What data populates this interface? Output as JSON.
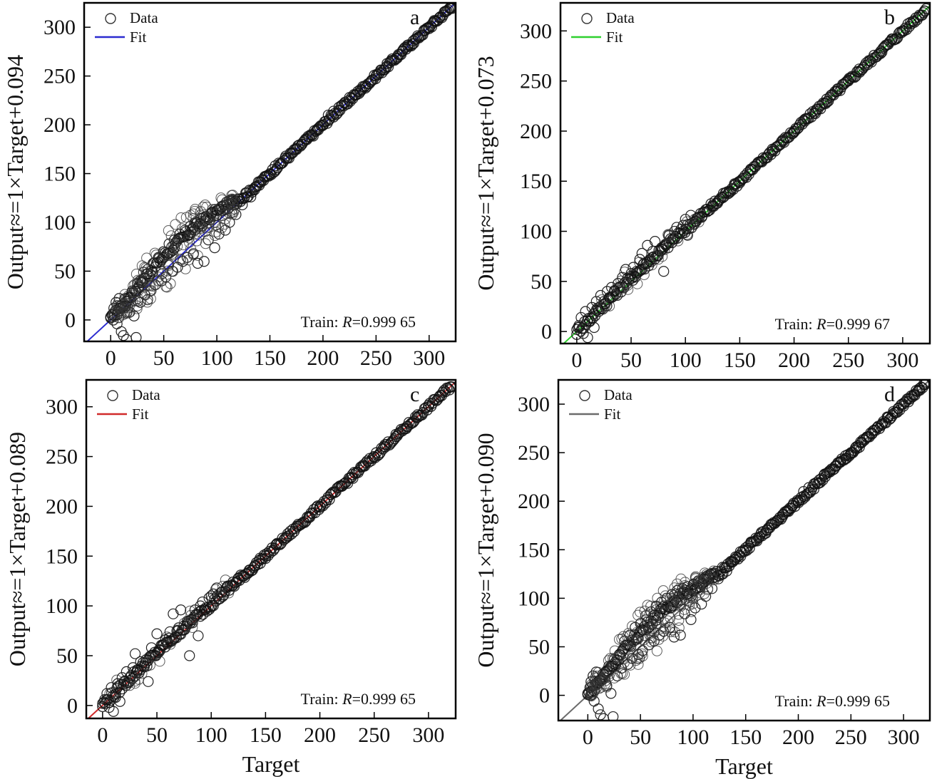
{
  "chart_data": [
    {
      "type": "scatter",
      "panel": "a",
      "legend": {
        "data_label": "Data",
        "fit_label": "Fit",
        "placement": "top-left"
      },
      "fit_color": "#2b2bd0",
      "fit": {
        "slope": 1,
        "intercept": 0.094
      },
      "ylabel": "Output≈=1×Target+0.094",
      "xlabel": "",
      "x_ticks": [
        "0",
        "50",
        "100",
        "150",
        "200",
        "250",
        "300"
      ],
      "y_ticks": [
        "0",
        "50",
        "100",
        "150",
        "200",
        "250",
        "300"
      ],
      "xlim": [
        -25,
        325
      ],
      "ylim": [
        -22,
        325
      ],
      "r_prefix": "Train: ",
      "r_symbol": "R",
      "r_value": "=0.999 65",
      "bulge": 1.0,
      "points": [
        [
          0,
          2
        ],
        [
          2,
          6
        ],
        [
          3,
          12
        ],
        [
          5,
          18
        ],
        [
          6,
          -4
        ],
        [
          8,
          22
        ],
        [
          10,
          -12
        ],
        [
          12,
          -16
        ],
        [
          14,
          14
        ],
        [
          15,
          -20
        ],
        [
          18,
          8
        ],
        [
          20,
          28
        ],
        [
          22,
          4
        ],
        [
          24,
          -18
        ],
        [
          26,
          32
        ],
        [
          28,
          18
        ],
        [
          30,
          40
        ],
        [
          32,
          26
        ],
        [
          35,
          52
        ],
        [
          38,
          30
        ],
        [
          40,
          58
        ],
        [
          42,
          36
        ],
        [
          45,
          64
        ],
        [
          48,
          40
        ],
        [
          50,
          70
        ],
        [
          52,
          44
        ],
        [
          55,
          78
        ],
        [
          58,
          50
        ],
        [
          60,
          82
        ],
        [
          63,
          54
        ],
        [
          65,
          88
        ],
        [
          68,
          60
        ],
        [
          70,
          92
        ],
        [
          72,
          64
        ],
        [
          75,
          96
        ],
        [
          78,
          68
        ],
        [
          80,
          100
        ],
        [
          82,
          58
        ],
        [
          85,
          104
        ],
        [
          88,
          60
        ],
        [
          90,
          106
        ],
        [
          92,
          82
        ],
        [
          95,
          110
        ],
        [
          98,
          74
        ],
        [
          100,
          112
        ],
        [
          102,
          88
        ],
        [
          105,
          116
        ],
        [
          108,
          92
        ],
        [
          110,
          118
        ],
        [
          112,
          100
        ],
        [
          115,
          120
        ],
        [
          118,
          108
        ],
        [
          120,
          124
        ],
        [
          124,
          118
        ],
        [
          128,
          130
        ],
        [
          132,
          126
        ],
        [
          136,
          136
        ],
        [
          140,
          138
        ],
        [
          145,
          146
        ],
        [
          150,
          150
        ],
        [
          155,
          158
        ],
        [
          160,
          160
        ],
        [
          165,
          168
        ],
        [
          170,
          170
        ],
        [
          175,
          176
        ],
        [
          180,
          180
        ],
        [
          185,
          186
        ],
        [
          190,
          190
        ],
        [
          195,
          196
        ],
        [
          200,
          200
        ],
        [
          205,
          210
        ],
        [
          210,
          214
        ],
        [
          215,
          218
        ],
        [
          220,
          222
        ],
        [
          225,
          228
        ],
        [
          230,
          230
        ],
        [
          235,
          236
        ],
        [
          240,
          240
        ],
        [
          245,
          244
        ],
        [
          250,
          250
        ],
        [
          255,
          256
        ],
        [
          260,
          260
        ],
        [
          265,
          266
        ],
        [
          270,
          270
        ],
        [
          275,
          276
        ],
        [
          280,
          280
        ],
        [
          285,
          286
        ],
        [
          290,
          290
        ],
        [
          295,
          296
        ],
        [
          300,
          300
        ],
        [
          305,
          306
        ],
        [
          310,
          310
        ],
        [
          315,
          316
        ],
        [
          320,
          320
        ]
      ]
    },
    {
      "type": "scatter",
      "panel": "b",
      "legend": {
        "data_label": "Data",
        "fit_label": "Fit",
        "placement": "top-left"
      },
      "fit_color": "#2fd02f",
      "fit": {
        "slope": 1,
        "intercept": 0.073
      },
      "ylabel": "Output≈=1×Target+0.073",
      "xlabel": "",
      "x_ticks": [
        "0",
        "50",
        "100",
        "150",
        "200",
        "250",
        "300"
      ],
      "y_ticks": [
        "0",
        "50",
        "100",
        "150",
        "200",
        "250",
        "300"
      ],
      "xlim": [
        -15,
        325
      ],
      "ylim": [
        -12,
        328
      ],
      "r_prefix": "Train: ",
      "r_symbol": "R",
      "r_value": "=0.999 67",
      "bulge": 0.2,
      "points": [
        [
          0,
          2
        ],
        [
          2,
          6
        ],
        [
          4,
          14
        ],
        [
          6,
          -2
        ],
        [
          8,
          20
        ],
        [
          10,
          -6
        ],
        [
          12,
          10
        ],
        [
          14,
          24
        ],
        [
          16,
          4
        ],
        [
          18,
          30
        ],
        [
          20,
          22
        ],
        [
          22,
          36
        ],
        [
          25,
          30
        ],
        [
          28,
          40
        ],
        [
          30,
          34
        ],
        [
          32,
          44
        ],
        [
          35,
          40
        ],
        [
          38,
          48
        ],
        [
          40,
          44
        ],
        [
          42,
          54
        ],
        [
          45,
          62
        ],
        [
          48,
          52
        ],
        [
          50,
          58
        ],
        [
          52,
          64
        ],
        [
          55,
          60
        ],
        [
          58,
          72
        ],
        [
          60,
          78
        ],
        [
          62,
          68
        ],
        [
          65,
          86
        ],
        [
          68,
          72
        ],
        [
          70,
          80
        ],
        [
          72,
          90
        ],
        [
          75,
          76
        ],
        [
          78,
          82
        ],
        [
          80,
          60
        ],
        [
          82,
          86
        ],
        [
          85,
          96
        ],
        [
          88,
          92
        ],
        [
          90,
          100
        ],
        [
          92,
          104
        ],
        [
          95,
          98
        ],
        [
          98,
          106
        ],
        [
          100,
          112
        ],
        [
          102,
          96
        ],
        [
          105,
          116
        ],
        [
          110,
          110
        ],
        [
          115,
          114
        ],
        [
          120,
          122
        ],
        [
          125,
          126
        ],
        [
          130,
          130
        ],
        [
          135,
          138
        ],
        [
          140,
          140
        ],
        [
          145,
          146
        ],
        [
          150,
          150
        ],
        [
          160,
          162
        ],
        [
          170,
          170
        ],
        [
          180,
          182
        ],
        [
          190,
          190
        ],
        [
          200,
          200
        ],
        [
          210,
          212
        ],
        [
          220,
          220
        ],
        [
          230,
          232
        ],
        [
          240,
          240
        ],
        [
          250,
          250
        ],
        [
          260,
          262
        ],
        [
          270,
          270
        ],
        [
          280,
          280
        ],
        [
          290,
          292
        ],
        [
          300,
          300
        ],
        [
          310,
          310
        ],
        [
          320,
          320
        ]
      ]
    },
    {
      "type": "scatter",
      "panel": "c",
      "legend": {
        "data_label": "Data",
        "fit_label": "Fit",
        "placement": "top-left"
      },
      "fit_color": "#d02a2a",
      "fit": {
        "slope": 1,
        "intercept": 0.089
      },
      "ylabel": "Output≈=1×Target+0.089",
      "xlabel": "Target",
      "x_ticks": [
        "0",
        "50",
        "100",
        "150",
        "200",
        "250",
        "300"
      ],
      "y_ticks": [
        "0",
        "50",
        "100",
        "150",
        "200",
        "250",
        "300"
      ],
      "xlim": [
        -15,
        325
      ],
      "ylim": [
        -13,
        327
      ],
      "r_prefix": "Train: ",
      "r_symbol": "R",
      "r_value": "=0.999 65",
      "bulge": 0.2,
      "points": [
        [
          0,
          2
        ],
        [
          2,
          6
        ],
        [
          4,
          12
        ],
        [
          6,
          -2
        ],
        [
          8,
          18
        ],
        [
          10,
          -6
        ],
        [
          12,
          8
        ],
        [
          14,
          22
        ],
        [
          16,
          4
        ],
        [
          18,
          28
        ],
        [
          20,
          24
        ],
        [
          22,
          34
        ],
        [
          25,
          28
        ],
        [
          28,
          38
        ],
        [
          30,
          52
        ],
        [
          32,
          36
        ],
        [
          35,
          44
        ],
        [
          38,
          40
        ],
        [
          40,
          46
        ],
        [
          42,
          24
        ],
        [
          45,
          58
        ],
        [
          48,
          50
        ],
        [
          50,
          72
        ],
        [
          52,
          56
        ],
        [
          55,
          60
        ],
        [
          58,
          66
        ],
        [
          60,
          64
        ],
        [
          62,
          74
        ],
        [
          65,
          92
        ],
        [
          68,
          68
        ],
        [
          70,
          78
        ],
        [
          72,
          96
        ],
        [
          75,
          80
        ],
        [
          78,
          82
        ],
        [
          80,
          50
        ],
        [
          82,
          86
        ],
        [
          85,
          96
        ],
        [
          88,
          70
        ],
        [
          90,
          100
        ],
        [
          92,
          104
        ],
        [
          95,
          98
        ],
        [
          98,
          108
        ],
        [
          100,
          110
        ],
        [
          102,
          112
        ],
        [
          105,
          118
        ],
        [
          110,
          114
        ],
        [
          115,
          120
        ],
        [
          120,
          124
        ],
        [
          125,
          128
        ],
        [
          130,
          130
        ],
        [
          135,
          136
        ],
        [
          140,
          140
        ],
        [
          145,
          148
        ],
        [
          150,
          150
        ],
        [
          160,
          162
        ],
        [
          170,
          170
        ],
        [
          180,
          182
        ],
        [
          190,
          190
        ],
        [
          200,
          200
        ],
        [
          210,
          212
        ],
        [
          220,
          220
        ],
        [
          230,
          232
        ],
        [
          240,
          240
        ],
        [
          250,
          250
        ],
        [
          260,
          262
        ],
        [
          270,
          270
        ],
        [
          280,
          280
        ],
        [
          290,
          292
        ],
        [
          300,
          300
        ],
        [
          310,
          310
        ],
        [
          320,
          320
        ]
      ]
    },
    {
      "type": "scatter",
      "panel": "d",
      "legend": {
        "data_label": "Data",
        "fit_label": "Fit",
        "placement": "top-left"
      },
      "fit_color": "#6b6b6b",
      "fit": {
        "slope": 1,
        "intercept": 0.09
      },
      "ylabel": "Output≈=1×Target+0.090",
      "xlabel": "Target",
      "x_ticks": [
        "0",
        "50",
        "100",
        "150",
        "200",
        "250",
        "300"
      ],
      "y_ticks": [
        "0",
        "50",
        "100",
        "150",
        "200",
        "250",
        "300"
      ],
      "xlim": [
        -28,
        325
      ],
      "ylim": [
        -26,
        325
      ],
      "r_prefix": "Train: ",
      "r_symbol": "R",
      "r_value": "=0.999 65",
      "bulge": 1.0,
      "points": [
        [
          0,
          2
        ],
        [
          2,
          8
        ],
        [
          3,
          14
        ],
        [
          5,
          20
        ],
        [
          6,
          -6
        ],
        [
          8,
          24
        ],
        [
          10,
          -14
        ],
        [
          12,
          -20
        ],
        [
          14,
          16
        ],
        [
          15,
          -24
        ],
        [
          18,
          10
        ],
        [
          20,
          30
        ],
        [
          22,
          2
        ],
        [
          24,
          -22
        ],
        [
          26,
          34
        ],
        [
          28,
          20
        ],
        [
          30,
          42
        ],
        [
          32,
          28
        ],
        [
          35,
          56
        ],
        [
          38,
          32
        ],
        [
          40,
          62
        ],
        [
          42,
          38
        ],
        [
          45,
          70
        ],
        [
          48,
          42
        ],
        [
          50,
          74
        ],
        [
          52,
          46
        ],
        [
          55,
          82
        ],
        [
          58,
          52
        ],
        [
          60,
          86
        ],
        [
          63,
          56
        ],
        [
          65,
          92
        ],
        [
          68,
          62
        ],
        [
          70,
          96
        ],
        [
          72,
          66
        ],
        [
          75,
          100
        ],
        [
          78,
          70
        ],
        [
          80,
          104
        ],
        [
          82,
          60
        ],
        [
          85,
          108
        ],
        [
          88,
          62
        ],
        [
          90,
          110
        ],
        [
          92,
          84
        ],
        [
          95,
          112
        ],
        [
          98,
          78
        ],
        [
          100,
          114
        ],
        [
          102,
          90
        ],
        [
          105,
          118
        ],
        [
          108,
          94
        ],
        [
          110,
          120
        ],
        [
          112,
          102
        ],
        [
          115,
          122
        ],
        [
          118,
          110
        ],
        [
          120,
          126
        ],
        [
          124,
          120
        ],
        [
          128,
          132
        ],
        [
          132,
          128
        ],
        [
          136,
          138
        ],
        [
          140,
          140
        ],
        [
          145,
          148
        ],
        [
          150,
          150
        ],
        [
          155,
          158
        ],
        [
          160,
          160
        ],
        [
          165,
          168
        ],
        [
          170,
          170
        ],
        [
          175,
          176
        ],
        [
          180,
          180
        ],
        [
          185,
          186
        ],
        [
          190,
          190
        ],
        [
          195,
          196
        ],
        [
          200,
          200
        ],
        [
          205,
          210
        ],
        [
          210,
          214
        ],
        [
          215,
          218
        ],
        [
          220,
          222
        ],
        [
          225,
          228
        ],
        [
          230,
          230
        ],
        [
          235,
          236
        ],
        [
          240,
          240
        ],
        [
          245,
          244
        ],
        [
          250,
          250
        ],
        [
          255,
          256
        ],
        [
          260,
          260
        ],
        [
          265,
          266
        ],
        [
          270,
          270
        ],
        [
          275,
          276
        ],
        [
          280,
          280
        ],
        [
          285,
          286
        ],
        [
          290,
          290
        ],
        [
          295,
          296
        ],
        [
          300,
          300
        ],
        [
          305,
          306
        ],
        [
          310,
          310
        ],
        [
          315,
          316
        ],
        [
          320,
          320
        ]
      ]
    }
  ]
}
